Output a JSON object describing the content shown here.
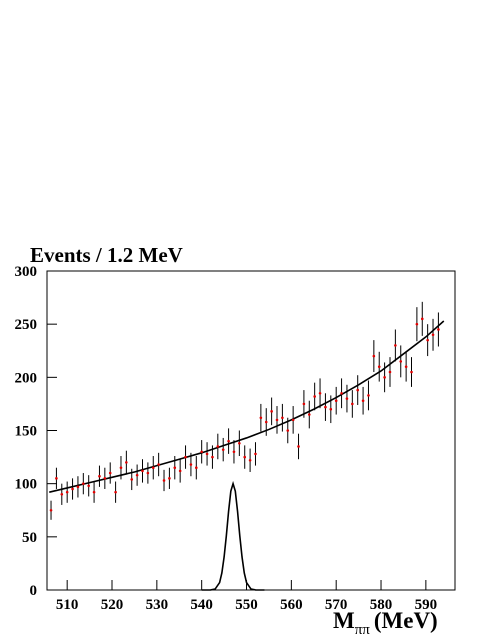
{
  "chart_data": {
    "type": "scatter",
    "title": "Events / 1.2 MeV",
    "x_label": {
      "main": "M",
      "sub": "ππ",
      "unit": "(MeV)"
    },
    "xlim": [
      505.5,
      596.5
    ],
    "ylim": [
      0,
      300
    ],
    "xticks": [
      510,
      520,
      530,
      540,
      550,
      560,
      570,
      580,
      590
    ],
    "yticks": [
      0,
      50,
      100,
      150,
      200,
      250,
      300
    ],
    "points": {
      "color": "#e00000",
      "error_color": "#000000",
      "x": [
        506.4,
        507.6,
        508.8,
        510.0,
        511.2,
        512.4,
        513.6,
        514.8,
        516.0,
        517.2,
        518.4,
        519.6,
        520.8,
        522.0,
        523.2,
        524.4,
        525.6,
        526.8,
        528.0,
        529.2,
        530.4,
        531.6,
        532.8,
        534.0,
        535.2,
        536.4,
        537.6,
        538.8,
        540.0,
        541.2,
        542.4,
        543.6,
        544.8,
        546.0,
        547.2,
        548.4,
        549.6,
        550.8,
        552.0,
        553.2,
        554.4,
        555.6,
        556.8,
        558.0,
        559.2,
        560.4,
        561.6,
        562.8,
        564.0,
        565.2,
        566.4,
        567.6,
        568.8,
        570.0,
        571.2,
        572.4,
        573.6,
        574.8,
        576.0,
        577.2,
        578.4,
        579.6,
        580.8,
        582.0,
        583.2,
        584.4,
        585.6,
        586.8,
        588.0,
        589.2,
        590.4,
        591.6,
        592.8
      ],
      "values": [
        75,
        105,
        90,
        92,
        95,
        97,
        100,
        98,
        92,
        107,
        105,
        110,
        92,
        115,
        120,
        104,
        108,
        112,
        110,
        115,
        118,
        103,
        105,
        115,
        112,
        125,
        118,
        115,
        130,
        128,
        125,
        135,
        132,
        140,
        130,
        138,
        125,
        122,
        128,
        162,
        158,
        168,
        160,
        162,
        150,
        160,
        135,
        175,
        165,
        182,
        185,
        172,
        170,
        178,
        185,
        180,
        175,
        188,
        178,
        183,
        220,
        210,
        200,
        205,
        230,
        215,
        210,
        205,
        250,
        255,
        235,
        240,
        245
      ],
      "errors": [
        9,
        10,
        10,
        10,
        10,
        10,
        10,
        10,
        10,
        10,
        10,
        10,
        10,
        11,
        11,
        10,
        10,
        11,
        10,
        11,
        11,
        10,
        10,
        11,
        11,
        11,
        11,
        11,
        11,
        11,
        11,
        12,
        11,
        12,
        11,
        12,
        11,
        11,
        11,
        13,
        13,
        13,
        13,
        13,
        12,
        13,
        12,
        13,
        13,
        13,
        14,
        13,
        13,
        13,
        14,
        13,
        13,
        14,
        13,
        14,
        15,
        14,
        14,
        14,
        15,
        15,
        14,
        14,
        16,
        16,
        15,
        15,
        16
      ]
    },
    "lines": [
      {
        "color": "#000000",
        "x": [
          506,
          510,
          515,
          520,
          525,
          530,
          535,
          540,
          545,
          550,
          555,
          560,
          565,
          570,
          575,
          580,
          585,
          590,
          594
        ],
        "values": [
          92,
          96,
          101,
          106,
          111,
          117,
          123,
          129,
          136,
          143,
          151,
          160,
          170,
          181,
          193,
          206,
          222,
          238,
          253
        ]
      },
      {
        "color": "#000000",
        "x": [
          540,
          541,
          542,
          543,
          544,
          544.5,
          545,
          545.5,
          546,
          546.5,
          547,
          547.5,
          548,
          548.5,
          549,
          549.5,
          550,
          551,
          552,
          553,
          554
        ],
        "values": [
          0,
          0,
          0.1,
          0.9,
          7,
          16,
          31,
          51,
          74,
          93,
          100,
          93,
          74,
          51,
          31,
          16,
          7,
          0.9,
          0.1,
          0,
          0
        ]
      }
    ]
  }
}
